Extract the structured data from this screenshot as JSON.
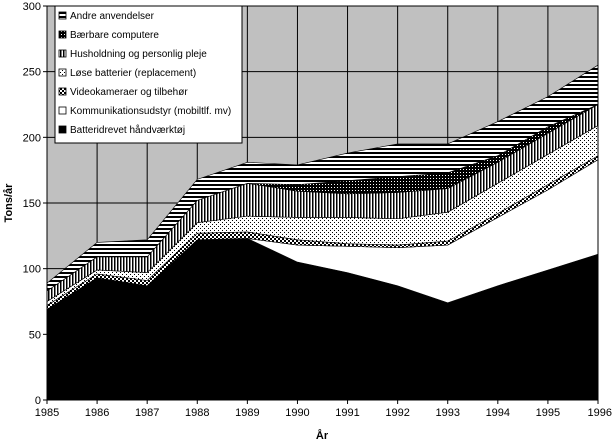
{
  "chart_data": {
    "type": "area",
    "stacked": true,
    "title": "",
    "xlabel": "År",
    "ylabel": "Tons/år",
    "x": [
      1985,
      1986,
      1987,
      1988,
      1989,
      1990,
      1991,
      1992,
      1993,
      1994,
      1995,
      1996
    ],
    "ylim": [
      0,
      300
    ],
    "yticks": [
      0,
      50,
      100,
      150,
      200,
      250,
      300
    ],
    "grid": true,
    "legend_position": "top-left",
    "plot_background": "#c0c0c0",
    "series": [
      {
        "name": "Batteridrevet håndværktøj",
        "pattern": "solid-black",
        "values": [
          69,
          93,
          87,
          122,
          123,
          105,
          97,
          87,
          74,
          87,
          99,
          111
        ]
      },
      {
        "name": "Kommunikationsudstyr (mobiltlf. mv)",
        "pattern": "white",
        "values": [
          0,
          0,
          0,
          0,
          0,
          13,
          20,
          29,
          44,
          52,
          61,
          72
        ]
      },
      {
        "name": "Videokameraer og tilbehør",
        "pattern": "checker",
        "values": [
          3,
          3,
          4,
          5,
          5,
          4,
          2,
          2,
          3,
          3,
          4,
          3
        ]
      },
      {
        "name": "Løse batterier (replacement)",
        "pattern": "dots",
        "values": [
          3,
          3,
          6,
          8,
          12,
          17,
          20,
          20,
          22,
          23,
          23,
          23
        ]
      },
      {
        "name": "Husholdning og personlig pleje",
        "pattern": "vertical-lines",
        "values": [
          8,
          10,
          12,
          17,
          25,
          20,
          18,
          20,
          18,
          16,
          16,
          16
        ]
      },
      {
        "name": "Bærbare computere",
        "pattern": "dense-black",
        "values": [
          0,
          0,
          0,
          0,
          0,
          5,
          10,
          12,
          12,
          5,
          5,
          0
        ]
      },
      {
        "name": "Andre anvendelser",
        "pattern": "horizontal-lines",
        "values": [
          6,
          11,
          13,
          16,
          16,
          15,
          21,
          25,
          22,
          26,
          23,
          30
        ]
      }
    ]
  }
}
